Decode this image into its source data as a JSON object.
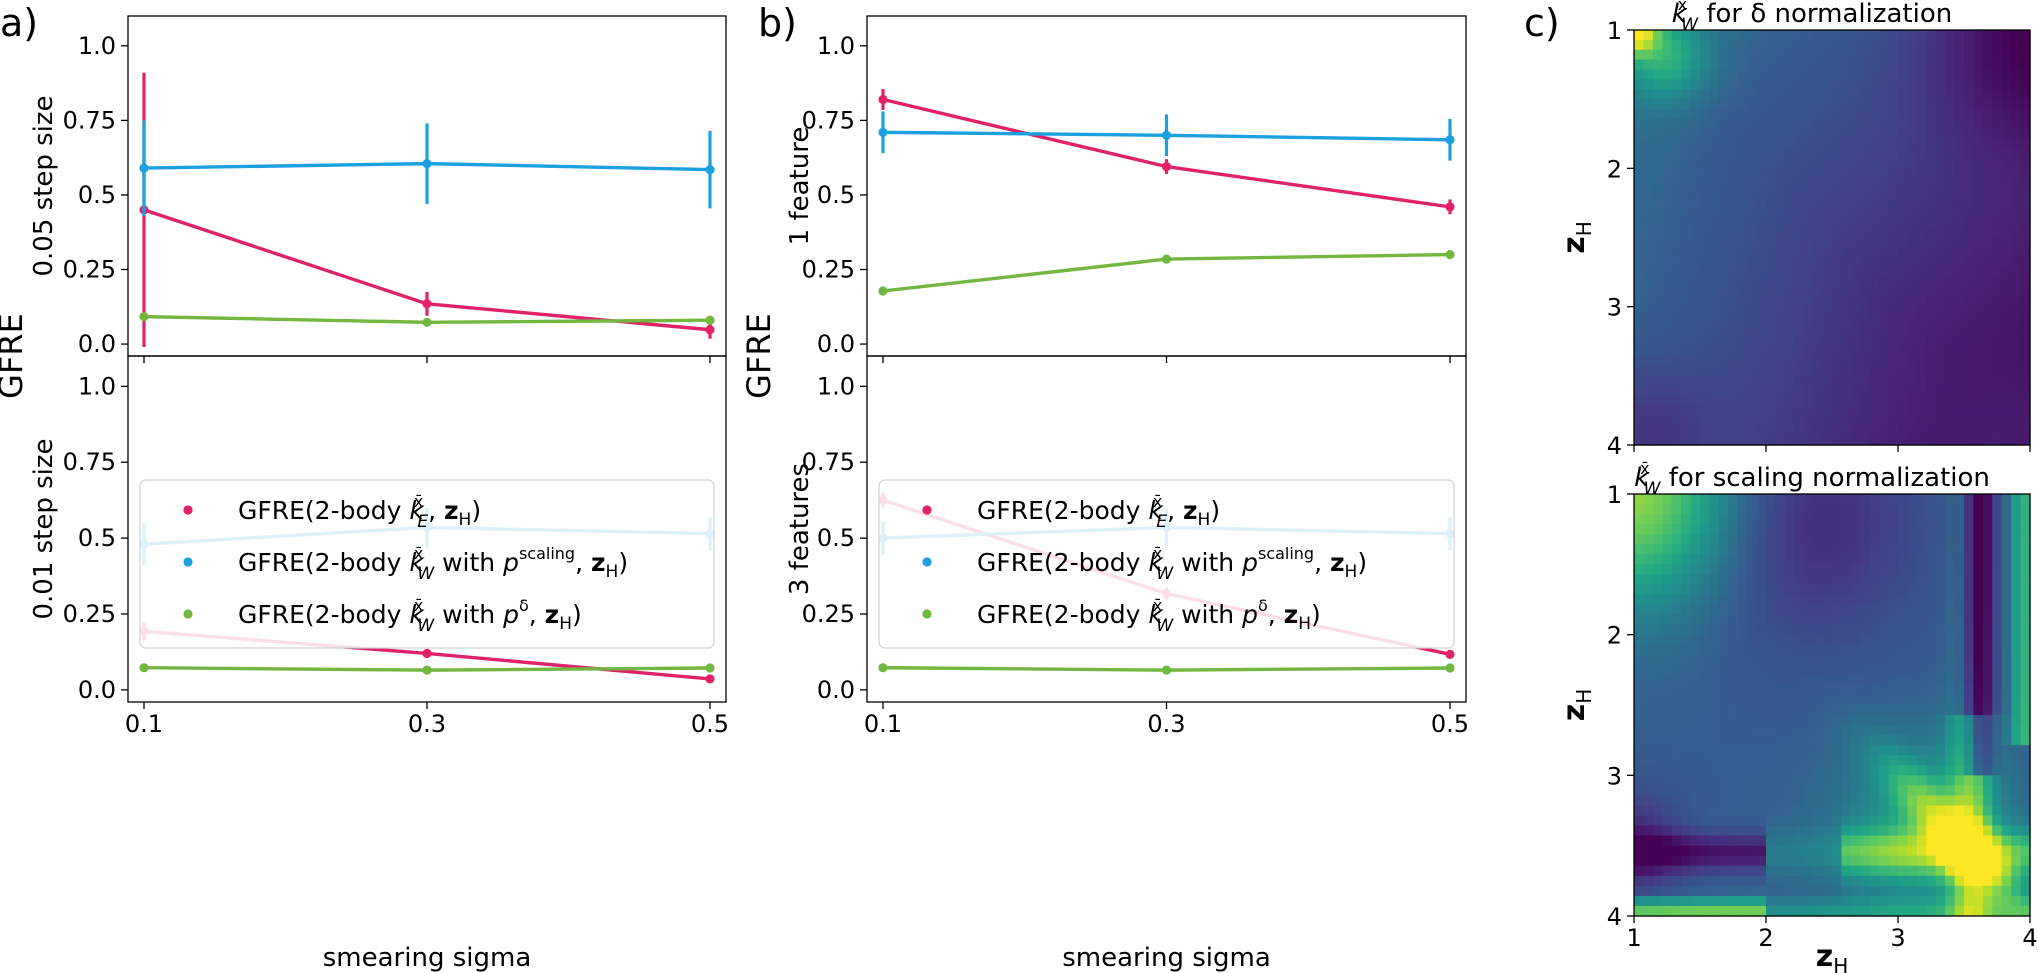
{
  "panel_labels": [
    "a)",
    "b)",
    "c)"
  ],
  "chart_data": [
    {
      "id": "a",
      "type": "line",
      "shared_ylabel": "GFRE",
      "xlabel": "smearing sigma",
      "x": [
        0.1,
        0.3,
        0.5
      ],
      "x_ticks": [
        "0.1",
        "0.3",
        "0.5"
      ],
      "y_ticks": [
        "0.0",
        "0.25",
        "0.5",
        "0.75",
        "1.0"
      ],
      "ylim": [
        -0.04,
        1.1
      ],
      "grid": false,
      "legend_position": "in lower subplot, upper area",
      "subplots": [
        {
          "ylabel": "0.05 step size",
          "series": [
            {
              "name": "GFRE(2-body k_E^x̄, z_H)",
              "color": "#e0226a",
              "values": [
                0.45,
                0.135,
                0.048
              ],
              "errors": [
                0.46,
                0.04,
                0.03
              ]
            },
            {
              "name": "GFRE(2-body k_W^x̄ with p^scaling, z_H)",
              "color": "#1ba0e0",
              "values": [
                0.59,
                0.605,
                0.585
              ],
              "errors": [
                0.16,
                0.135,
                0.13
              ]
            },
            {
              "name": "GFRE(2-body k_W^x̄ with p^δ, z_H)",
              "color": "#72b740",
              "values": [
                0.092,
                0.073,
                0.08
              ],
              "errors": [
                0.005,
                0.005,
                0.005
              ]
            }
          ]
        },
        {
          "ylabel": "0.01 step size",
          "series": [
            {
              "name": "GFRE(2-body k_E^x̄, z_H)",
              "color": "#e0226a",
              "values": [
                0.193,
                0.12,
                0.036
              ],
              "errors": [
                0.03,
                0.015,
                0.006
              ]
            },
            {
              "name": "GFRE(2-body k_W^x̄ with p^scaling, z_H)",
              "color": "#1ba0e0",
              "values": [
                0.48,
                0.535,
                0.515
              ],
              "errors": [
                0.07,
                0.065,
                0.055
              ]
            },
            {
              "name": "GFRE(2-body k_W^x̄ with p^δ, z_H)",
              "color": "#72b740",
              "values": [
                0.073,
                0.065,
                0.072
              ],
              "errors": [
                0.004,
                0.004,
                0.004
              ]
            }
          ]
        }
      ]
    },
    {
      "id": "b",
      "type": "line",
      "shared_ylabel": "GFRE",
      "xlabel": "smearing sigma",
      "x": [
        0.1,
        0.3,
        0.5
      ],
      "x_ticks": [
        "0.1",
        "0.3",
        "0.5"
      ],
      "y_ticks": [
        "0.0",
        "0.25",
        "0.5",
        "0.75",
        "1.0"
      ],
      "ylim": [
        -0.04,
        1.1
      ],
      "grid": false,
      "legend_position": "in lower subplot, upper area",
      "subplots": [
        {
          "ylabel": "1 feature",
          "series": [
            {
              "name": "GFRE(2-body k_E^x̄, z_H)",
              "color": "#e0226a",
              "values": [
                0.82,
                0.595,
                0.46
              ],
              "errors": [
                0.035,
                0.025,
                0.025
              ]
            },
            {
              "name": "GFRE(2-body k_W^x̄ with p^scaling, z_H)",
              "color": "#1ba0e0",
              "values": [
                0.71,
                0.7,
                0.685
              ],
              "errors": [
                0.07,
                0.07,
                0.07
              ]
            },
            {
              "name": "GFRE(2-body k_W^x̄ with p^δ, z_H)",
              "color": "#72b740",
              "values": [
                0.178,
                0.285,
                0.3
              ],
              "errors": [
                0.005,
                0.005,
                0.005
              ]
            }
          ]
        },
        {
          "ylabel": "3 features",
          "series": [
            {
              "name": "GFRE(2-body k_E^x̄, z_H)",
              "color": "#e0226a",
              "values": [
                0.625,
                0.317,
                0.117
              ],
              "errors": [
                0.025,
                0.02,
                0.008
              ]
            },
            {
              "name": "GFRE(2-body k_W^x̄ with p^scaling, z_H)",
              "color": "#1ba0e0",
              "values": [
                0.5,
                0.535,
                0.515
              ],
              "errors": [
                0.055,
                0.065,
                0.055
              ]
            },
            {
              "name": "GFRE(2-body k_W^x̄ with p^δ, z_H)",
              "color": "#72b740",
              "values": [
                0.073,
                0.065,
                0.072
              ],
              "errors": [
                0.004,
                0.004,
                0.004
              ]
            }
          ]
        }
      ]
    },
    {
      "id": "c",
      "type": "heatmap",
      "colormap": "viridis",
      "xlabel": "z_H",
      "ylabel": "z_H",
      "x_ticks": [
        "1",
        "2",
        "3",
        "4"
      ],
      "y_ticks": [
        "1",
        "2",
        "3",
        "4"
      ],
      "range": [
        1,
        4
      ],
      "subplots": [
        {
          "title_pre": "k",
          "title_sub": "W",
          "title_sup": "x̄",
          "title_post": " for δ normalization"
        },
        {
          "title_pre": "k",
          "title_sub": "W",
          "title_sup": "x̄",
          "title_post": " for scaling normalization"
        }
      ]
    }
  ]
}
